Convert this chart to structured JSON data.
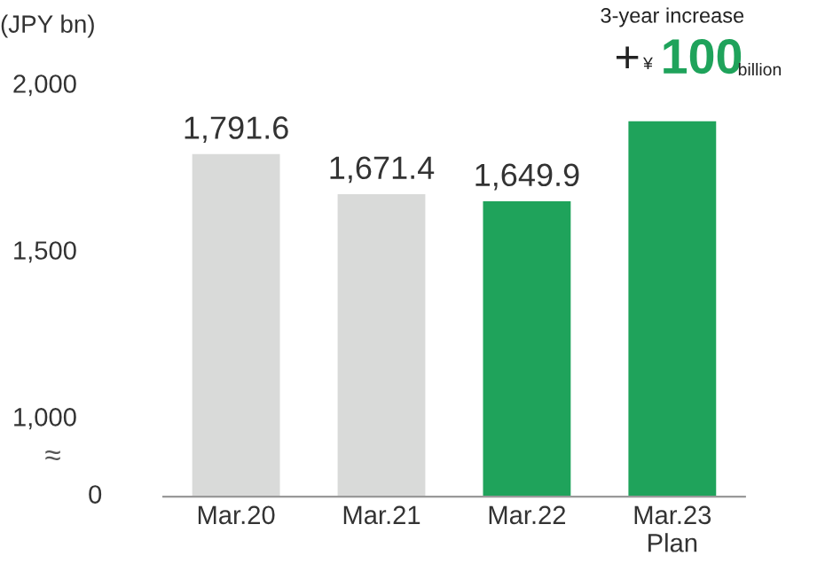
{
  "chart_data": {
    "type": "bar",
    "ylabel": "(JPY bn)",
    "categories": [
      "Mar.20",
      "Mar.21",
      "Mar.22",
      "Mar.23\nPlan"
    ],
    "values": [
      1791.6,
      1671.4,
      1649.9,
      1890
    ],
    "colors": [
      "#d9dad9",
      "#d9dad9",
      "#1fa35b",
      "#1fa35b"
    ],
    "value_labels": [
      "1,791.6",
      "1,671.4",
      "1,649.9",
      null
    ],
    "ylim": [
      760,
      2000
    ],
    "yticks": [
      {
        "value": 1000,
        "label": "1,000"
      },
      {
        "value": 1500,
        "label": "1,500"
      },
      {
        "value": 2000,
        "label": "2,000"
      }
    ],
    "annotations": [
      "0",
      "≈",
      "3-year increase",
      "+",
      "¥",
      "100",
      "billion"
    ],
    "grid": false,
    "legend": false
  }
}
